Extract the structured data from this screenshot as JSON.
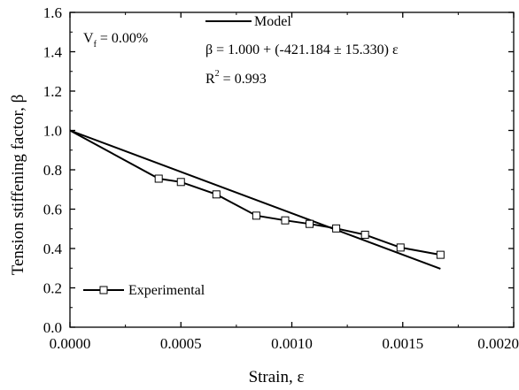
{
  "chart_data": {
    "type": "line",
    "xlabel": "Strain, ε",
    "ylabel": "Tension stiffening factor, β",
    "xlim": [
      0.0,
      0.002
    ],
    "ylim": [
      0.0,
      1.6
    ],
    "x_ticks": [
      "0.0000",
      "0.0005",
      "0.0010",
      "0.0015",
      "0.0020"
    ],
    "y_ticks": [
      "0.0",
      "0.2",
      "0.4",
      "0.6",
      "0.8",
      "1.0",
      "1.2",
      "1.4",
      "1.6"
    ],
    "grid": false,
    "annotation": {
      "vf_base": "V",
      "vf_sub": "f",
      "vf_rest": " = 0.00%",
      "equation": "β = 1.000 + (-421.184 ± 15.330) ε",
      "r2_base": "R",
      "r2_sup": "2",
      "r2_rest": " = 0.993"
    },
    "series": [
      {
        "name": "Model",
        "style": "line",
        "color": "#000000",
        "x": [
          0.0,
          0.00167
        ],
        "y": [
          1.0,
          0.297
        ]
      },
      {
        "name": "Experimental",
        "style": "line-square-markers",
        "color": "#000000",
        "x": [
          0.0,
          0.0004,
          0.0005,
          0.00066,
          0.00084,
          0.00097,
          0.00108,
          0.0012,
          0.00133,
          0.00149,
          0.00167
        ],
        "y": [
          1.0,
          0.755,
          0.738,
          0.675,
          0.567,
          0.543,
          0.525,
          0.502,
          0.47,
          0.405,
          0.368
        ]
      }
    ]
  }
}
